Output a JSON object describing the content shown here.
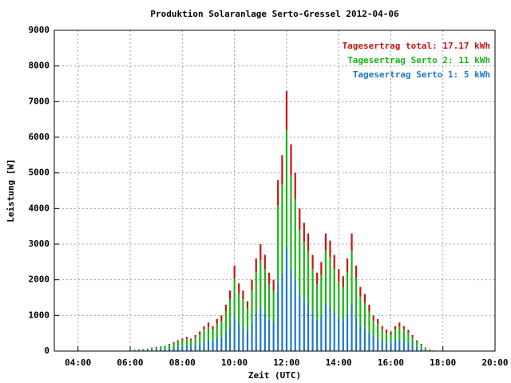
{
  "chart_data": {
    "type": "bar",
    "stacked": true,
    "title": "Produktion Solaranlage Serto-Gressel 2012-04-06",
    "x_label": "Zeit (UTC)",
    "y_label": "Leistung [W]",
    "xlim": [
      3.09,
      20
    ],
    "ylim": [
      0,
      9000
    ],
    "xticks": [
      {
        "value": 4,
        "label": "04:00"
      },
      {
        "value": 6,
        "label": "06:00"
      },
      {
        "value": 8,
        "label": "08:00"
      },
      {
        "value": 10,
        "label": "10:00"
      },
      {
        "value": 12,
        "label": "12:00"
      },
      {
        "value": 14,
        "label": "14:00"
      },
      {
        "value": 16,
        "label": "16:00"
      },
      {
        "value": 18,
        "label": "18:00"
      },
      {
        "value": 20,
        "label": "20:00"
      }
    ],
    "yticks": [
      0,
      1000,
      2000,
      3000,
      4000,
      5000,
      6000,
      7000,
      8000,
      9000
    ],
    "grid": true,
    "legend": "upper right",
    "x": [
      6,
      6.17,
      6.33,
      6.5,
      6.67,
      6.83,
      7,
      7.17,
      7.33,
      7.5,
      7.67,
      7.83,
      8,
      8.17,
      8.33,
      8.5,
      8.67,
      8.83,
      9,
      9.17,
      9.33,
      9.5,
      9.67,
      9.83,
      10,
      10.17,
      10.33,
      10.5,
      10.67,
      10.83,
      11,
      11.17,
      11.33,
      11.5,
      11.67,
      11.83,
      12,
      12.17,
      12.33,
      12.5,
      12.67,
      12.83,
      13,
      13.17,
      13.33,
      13.5,
      13.67,
      13.83,
      14,
      14.17,
      14.33,
      14.5,
      14.67,
      14.83,
      15,
      15.17,
      15.33,
      15.5,
      15.67,
      15.83,
      16,
      16.17,
      16.33,
      16.5,
      16.67,
      16.83,
      17,
      17.17,
      17.33,
      17.5,
      17.67,
      17.83
    ],
    "series": [
      {
        "name": "Tagesertrag Serto 1: 5 kWh",
        "color": "#1e78c8",
        "values": [
          10,
          20,
          20,
          20,
          30,
          40,
          50,
          50,
          60,
          80,
          100,
          120,
          140,
          160,
          140,
          180,
          220,
          280,
          320,
          280,
          360,
          400,
          520,
          680,
          960,
          760,
          680,
          560,
          800,
          1040,
          1200,
          1080,
          880,
          800,
          1920,
          2200,
          2920,
          2320,
          2000,
          1600,
          1440,
          1320,
          1080,
          880,
          1000,
          1320,
          1240,
          1080,
          920,
          840,
          1040,
          1320,
          960,
          720,
          640,
          520,
          400,
          360,
          280,
          240,
          220,
          280,
          320,
          280,
          240,
          180,
          120,
          80,
          40,
          20,
          10,
          0
        ]
      },
      {
        "name": "Tagesertrag Serto 2: 11 kWh",
        "color": "#19b419",
        "values": [
          20,
          20,
          20,
          30,
          30,
          50,
          50,
          60,
          70,
          90,
          110,
          140,
          160,
          180,
          160,
          200,
          250,
          320,
          360,
          320,
          410,
          450,
          590,
          770,
          1080,
          860,
          770,
          630,
          900,
          1170,
          1350,
          1220,
          990,
          900,
          2160,
          2480,
          3290,
          2610,
          2250,
          1800,
          1620,
          1490,
          1220,
          990,
          1130,
          1490,
          1400,
          1220,
          1040,
          950,
          1170,
          1490,
          1080,
          810,
          720,
          590,
          450,
          410,
          320,
          270,
          250,
          320,
          360,
          320,
          270,
          200,
          140,
          90,
          50,
          20,
          10,
          10
        ]
      },
      {
        "name": "Tagesertrag total: 17.17 kWh",
        "color": "#c81414",
        "values": [
          0,
          0,
          10,
          10,
          10,
          10,
          20,
          20,
          20,
          30,
          40,
          40,
          50,
          60,
          50,
          70,
          80,
          100,
          120,
          100,
          130,
          150,
          190,
          250,
          360,
          280,
          250,
          210,
          300,
          390,
          450,
          400,
          330,
          300,
          720,
          820,
          1090,
          870,
          750,
          600,
          540,
          490,
          400,
          330,
          370,
          490,
          460,
          400,
          340,
          310,
          390,
          490,
          360,
          270,
          240,
          190,
          150,
          130,
          100,
          90,
          80,
          100,
          120,
          100,
          90,
          70,
          40,
          30,
          10,
          10,
          0,
          0
        ]
      }
    ]
  }
}
